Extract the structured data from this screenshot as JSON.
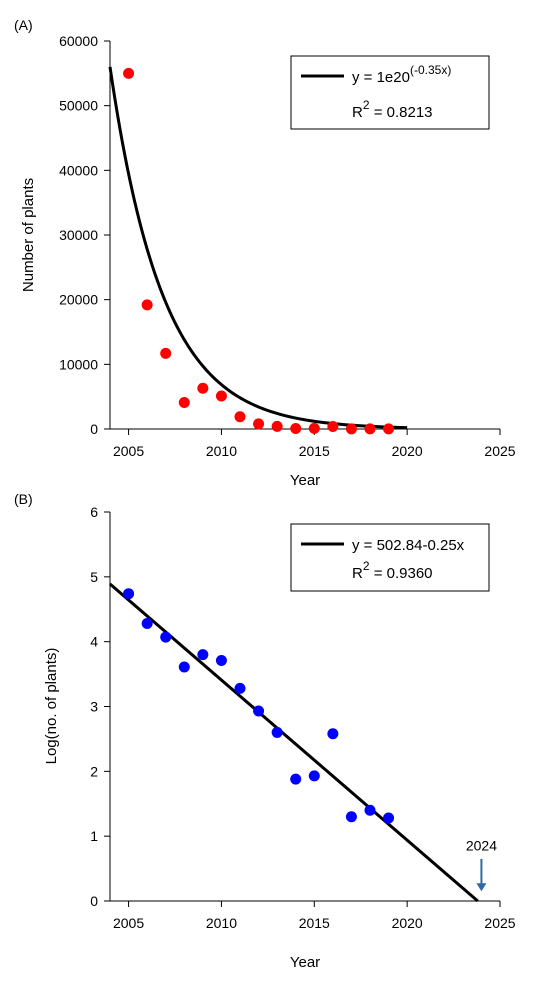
{
  "chart_data": [
    {
      "panel_label": "(A)",
      "type": "scatter",
      "xlabel": "Year",
      "ylabel": "Number of plants",
      "xlim": [
        2004,
        2025
      ],
      "ylim": [
        0,
        60000
      ],
      "xticks": [
        "2005",
        "2010",
        "2015",
        "2020",
        "2025"
      ],
      "yticks": [
        "0",
        "10000",
        "20000",
        "30000",
        "40000",
        "50000",
        "60000"
      ],
      "xtick_values": [
        2005,
        2010,
        2015,
        2020,
        2025
      ],
      "ytick_values": [
        0,
        10000,
        20000,
        30000,
        40000,
        50000,
        60000
      ],
      "point_color": "#ff0000",
      "points": [
        {
          "x": 2005,
          "y": 55000
        },
        {
          "x": 2006,
          "y": 19200
        },
        {
          "x": 2007,
          "y": 11700
        },
        {
          "x": 2008,
          "y": 4100
        },
        {
          "x": 2009,
          "y": 6300
        },
        {
          "x": 2010,
          "y": 5100
        },
        {
          "x": 2011,
          "y": 1900
        },
        {
          "x": 2012,
          "y": 800
        },
        {
          "x": 2013,
          "y": 400
        },
        {
          "x": 2014,
          "y": 80
        },
        {
          "x": 2015,
          "y": 90
        },
        {
          "x": 2016,
          "y": 380
        },
        {
          "x": 2017,
          "y": 20
        },
        {
          "x": 2018,
          "y": 25
        },
        {
          "x": 2019,
          "y": 20
        }
      ],
      "fit": {
        "kind": "exponential",
        "x_range": [
          2004,
          2020
        ],
        "anchor": {
          "x": 2004,
          "y": 56000
        },
        "rate": -0.35,
        "color": "#000000"
      },
      "legend": {
        "position": "top-right",
        "equation_main": "y = 1e20",
        "equation_exp": "(-0.35x)",
        "r2_prefix": "R",
        "r2_sup": "2",
        "r2_value": " = 0.8213"
      },
      "grid": false
    },
    {
      "panel_label": "(B)",
      "type": "scatter",
      "xlabel": "Year",
      "ylabel": "Log(no. of plants)",
      "xlim": [
        2004,
        2025
      ],
      "ylim": [
        0,
        6
      ],
      "xticks": [
        "2005",
        "2010",
        "2015",
        "2020",
        "2025"
      ],
      "yticks": [
        "0",
        "1",
        "2",
        "3",
        "4",
        "5",
        "6"
      ],
      "xtick_values": [
        2005,
        2010,
        2015,
        2020,
        2025
      ],
      "ytick_values": [
        0,
        1,
        2,
        3,
        4,
        5,
        6
      ],
      "point_color": "#0000ff",
      "points": [
        {
          "x": 2005,
          "y": 4.74
        },
        {
          "x": 2006,
          "y": 4.28
        },
        {
          "x": 2007,
          "y": 4.07
        },
        {
          "x": 2008,
          "y": 3.61
        },
        {
          "x": 2009,
          "y": 3.8
        },
        {
          "x": 2010,
          "y": 3.71
        },
        {
          "x": 2011,
          "y": 3.28
        },
        {
          "x": 2012,
          "y": 2.93
        },
        {
          "x": 2013,
          "y": 2.6
        },
        {
          "x": 2014,
          "y": 1.88
        },
        {
          "x": 2015,
          "y": 1.93
        },
        {
          "x": 2016,
          "y": 2.58
        },
        {
          "x": 2017,
          "y": 1.3
        },
        {
          "x": 2018,
          "y": 1.4
        },
        {
          "x": 2019,
          "y": 1.28
        }
      ],
      "fit": {
        "kind": "linear",
        "x_range": [
          2004,
          2023.8
        ],
        "y_range": [
          4.89,
          0
        ],
        "color": "#000000"
      },
      "annotation": {
        "text": "2024",
        "x": 2024,
        "arrow_color": "#2e6aa8"
      },
      "legend": {
        "position": "top-right",
        "equation_main": "y = 502.84-0.25x",
        "r2_prefix": "R",
        "r2_sup": "2",
        "r2_value": " = 0.9360"
      },
      "grid": false
    }
  ]
}
